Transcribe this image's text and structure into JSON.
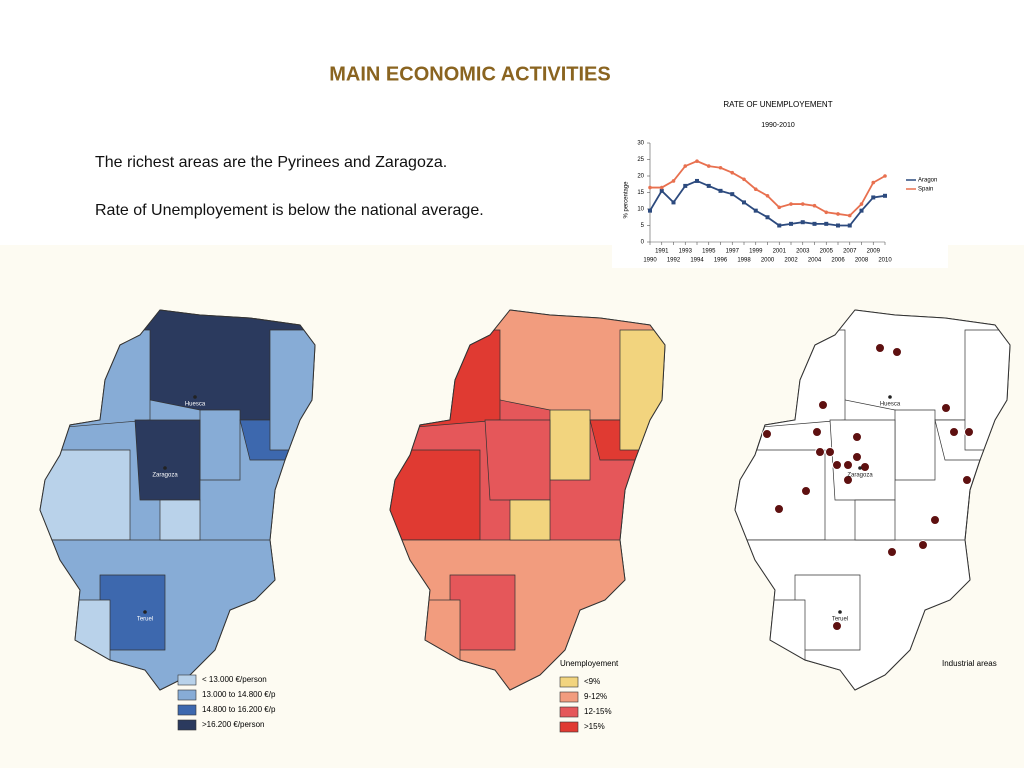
{
  "title": "MAIN ECONOMIC ACTIVITIES",
  "paragraphs": [
    "The richest areas are the Pyrinees and Zaragoza.",
    "Rate of Unemployement is below the national average."
  ],
  "chart_data": {
    "type": "line",
    "title": "RATE OF UNEMPLOYEMENT",
    "subtitle": "1990-2010",
    "y_label": "% percentage",
    "x": [
      1990,
      1991,
      1992,
      1993,
      1994,
      1995,
      1996,
      1997,
      1998,
      1999,
      2000,
      2001,
      2002,
      2003,
      2004,
      2005,
      2006,
      2007,
      2008,
      2009,
      2010
    ],
    "series": [
      {
        "name": "Aragon",
        "color": "#2c4a7e",
        "values": [
          9.5,
          15.5,
          12,
          17,
          18.5,
          17,
          15.5,
          14.5,
          12,
          9.5,
          7.5,
          5,
          5.5,
          6,
          5.5,
          5.5,
          5,
          5,
          9.5,
          13.5,
          14
        ]
      },
      {
        "name": "Spain",
        "color": "#e8704f",
        "values": [
          16.5,
          16.5,
          18.5,
          23,
          24.5,
          23,
          22.5,
          21,
          19,
          16,
          14,
          10.5,
          11.5,
          11.5,
          11,
          9,
          8.5,
          8,
          11.5,
          18,
          20
        ]
      }
    ],
    "xlim": [
      1990,
      2010
    ],
    "xticks": [
      1990,
      1991,
      1992,
      1993,
      1994,
      1995,
      1996,
      1997,
      1998,
      1999,
      2000,
      2001,
      2002,
      2003,
      2004,
      2005,
      2006,
      2007,
      2008,
      2009,
      2010
    ],
    "ylim": [
      0,
      30
    ],
    "yticks": [
      0,
      5,
      10,
      15,
      20,
      25,
      30
    ],
    "legend": "right"
  },
  "maps": [
    {
      "cities": [
        "Huesca",
        "Zaragoza",
        "Teruel"
      ],
      "legend": [
        "< 13.000 €/person",
        "13.000 to 14.800 €/p",
        "14.800 to 16.200 €/p",
        ">16.200 €/person"
      ],
      "legend_colors": [
        "#b9d2ea",
        "#87acd6",
        "#3d68ae",
        "#2b3a5e"
      ]
    },
    {
      "legend_title": "Unemployement",
      "legend": [
        "<9%",
        "9-12%",
        "12-15%",
        ">15%"
      ],
      "legend_colors": [
        "#f2d47e",
        "#f29c7e",
        "#e5575a",
        "#e03a32"
      ]
    },
    {
      "legend_title": "Industrial areas",
      "cities": [
        "Huesca",
        "Zaragoza",
        "Teruel"
      ]
    }
  ]
}
